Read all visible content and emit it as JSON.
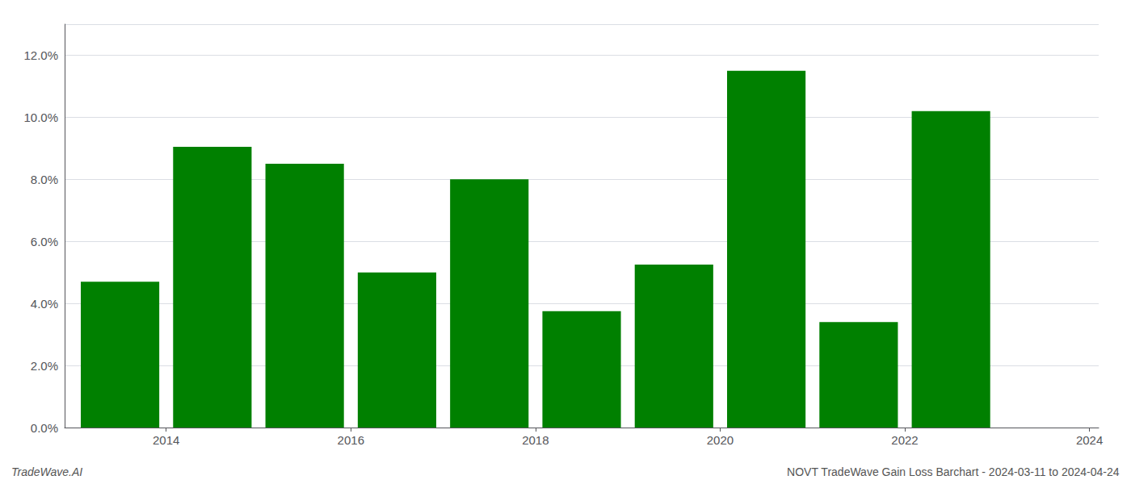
{
  "chart_data": {
    "type": "bar",
    "x": [
      2014,
      2015,
      2016,
      2017,
      2018,
      2019,
      2020,
      2021,
      2022,
      2023
    ],
    "values": [
      0.047,
      0.0905,
      0.085,
      0.05,
      0.08,
      0.0375,
      0.0525,
      0.115,
      0.034,
      0.102
    ],
    "color": "#008000",
    "xlim": [
      2013.4,
      2024.6
    ],
    "xticks": [
      {
        "value": 2014.5,
        "label": "2014"
      },
      {
        "value": 2016.5,
        "label": "2016"
      },
      {
        "value": 2018.5,
        "label": "2018"
      },
      {
        "value": 2020.5,
        "label": "2020"
      },
      {
        "value": 2022.5,
        "label": "2022"
      },
      {
        "value": 2024.5,
        "label": "2024"
      }
    ],
    "ylim": [
      0,
      0.13
    ],
    "yticks": [
      {
        "value": 0.0,
        "label": "0.0%"
      },
      {
        "value": 0.02,
        "label": "2.0%"
      },
      {
        "value": 0.04,
        "label": "4.0%"
      },
      {
        "value": 0.06,
        "label": "6.0%"
      },
      {
        "value": 0.08,
        "label": "8.0%"
      },
      {
        "value": 0.1,
        "label": "10.0%"
      },
      {
        "value": 0.12,
        "label": "12.0%"
      }
    ],
    "grid": true,
    "annotations": [
      "TradeWave.AI",
      "NOVT TradeWave Gain Loss Barchart - 2024-03-11 to 2024-04-24"
    ]
  }
}
